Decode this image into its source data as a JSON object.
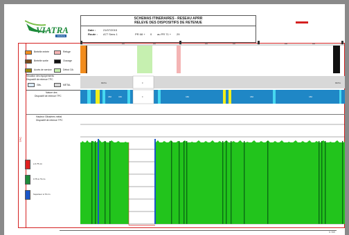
{
  "logo": {
    "name": "VIATRA",
    "sub": "FRANCE"
  },
  "header": {
    "title_line1": "SCHEMAS ITINERAIRES - RESEAU APRR",
    "title_line2": "RELEVE DES DISPOSITIFS DE RETENUE",
    "date_label": "Date :",
    "date_value": "21/07/2015",
    "road_label": "Route :",
    "road_value": "A77 Sens 1",
    "pr_start_label": "PR 68 +",
    "pr_start_value": "0",
    "pr_end_label": "au PR 71 +",
    "pr_end_value": "29",
    "accent_color": "#d42020"
  },
  "legend": {
    "items": [
      {
        "label": "Bretelle entrée",
        "color": "#f28c1c"
      },
      {
        "label": "Refuge",
        "color": "#f4b4b4"
      },
      {
        "label": "Bretelle sortie",
        "color": "#7a4a1c"
      },
      {
        "label": "Ouvrage",
        "color": "#111111"
      },
      {
        "label": "Accès de service",
        "color": "#9c8a10"
      },
      {
        "label": "Début OA",
        "color": "#c6f0b0"
      }
    ]
  },
  "sections": {
    "situation_title_1": "Situation des équipements",
    "situation_title_2": "Dispositif de retenue TPC",
    "situation_legend": [
      {
        "label": "Glis.",
        "color": "#dcecfa"
      },
      {
        "label": "METAL",
        "color": "#d8d8d8"
      }
    ],
    "nature_title_1": "Nature des",
    "nature_title_2": "Dispositif de retenue TPC",
    "hauteur_title_1": "Hauteur Glissières métal",
    "hauteur_title_2": "Dispositif de retenue TPC",
    "tpc_label": "TPC"
  },
  "height_legend": [
    {
      "label": "≤ 0.75 cm",
      "color": "#e02020"
    },
    {
      "label": "0.75 à 70 cm",
      "color": "#1e8a3a"
    },
    {
      "label": "Supérieur à 70 cm",
      "color": "#1a56c8"
    }
  ],
  "ruler": {
    "marks": [
      "68",
      "200",
      "400",
      "69",
      "200",
      "400",
      "70",
      "200",
      "400",
      "71"
    ]
  },
  "strip_labels": {
    "situation": [
      "METAL",
      "0",
      "METAL"
    ],
    "nature": [
      "GBA",
      "GBA",
      "0",
      "GBA",
      "GBA",
      "GBA"
    ]
  },
  "footer": {
    "page": "1 / 10"
  }
}
